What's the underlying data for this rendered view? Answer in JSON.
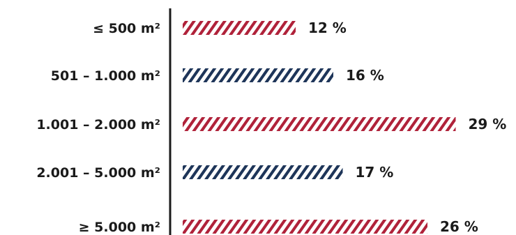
{
  "chart_data": {
    "type": "bar",
    "orientation": "horizontal",
    "categories": [
      "≤ 500 m²",
      "501 – 1.000 m²",
      "1.001 – 2.000 m²",
      "2.001 – 5.000 m²",
      "≥ 5.000 m²"
    ],
    "values": [
      12,
      16,
      29,
      17,
      26
    ],
    "value_labels": [
      "12 %",
      "16 %",
      "29 %",
      "17 %",
      "26 %"
    ],
    "unit": "%",
    "title": "",
    "xlabel": "",
    "ylabel": "",
    "xlim": [
      0,
      30
    ],
    "grid": false,
    "legend": "none",
    "bar_fill": "diagonal-hatch",
    "bar_colors": [
      "#b0223a",
      "#1e3559",
      "#b0223a",
      "#1e3559",
      "#b0223a"
    ],
    "axis_color": "#1a1a1a"
  }
}
